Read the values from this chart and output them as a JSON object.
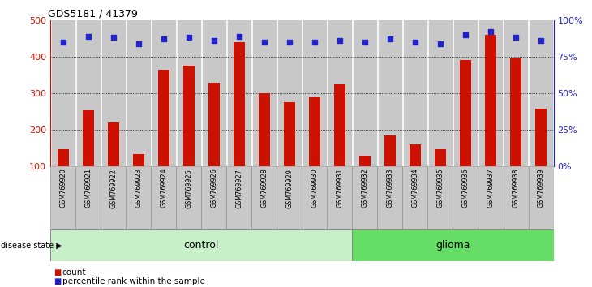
{
  "title": "GDS5181 / 41379",
  "samples": [
    "GSM769920",
    "GSM769921",
    "GSM769922",
    "GSM769923",
    "GSM769924",
    "GSM769925",
    "GSM769926",
    "GSM769927",
    "GSM769928",
    "GSM769929",
    "GSM769930",
    "GSM769931",
    "GSM769932",
    "GSM769933",
    "GSM769934",
    "GSM769935",
    "GSM769936",
    "GSM769937",
    "GSM769938",
    "GSM769939"
  ],
  "counts": [
    148,
    253,
    220,
    135,
    365,
    375,
    328,
    440,
    300,
    275,
    290,
    325,
    130,
    185,
    160,
    148,
    390,
    460,
    395,
    258
  ],
  "percentile_ranks": [
    85,
    89,
    88,
    84,
    87,
    88,
    86,
    89,
    85,
    85,
    85,
    86,
    85,
    87,
    85,
    84,
    90,
    92,
    88,
    86
  ],
  "bar_color": "#cc1100",
  "dot_color": "#2222cc",
  "control_count": 12,
  "glioma_count": 8,
  "control_label": "control",
  "glioma_label": "glioma",
  "disease_state_label": "disease state",
  "left_axis_color": "#cc1100",
  "right_axis_color": "#2222cc",
  "ylim_left": [
    100,
    500
  ],
  "ylim_right": [
    0,
    100
  ],
  "yticks_left": [
    100,
    200,
    300,
    400,
    500
  ],
  "ytick_labels_left": [
    "100",
    "200",
    "300",
    "400",
    "500"
  ],
  "yticks_right": [
    0,
    25,
    50,
    75,
    100
  ],
  "ytick_labels_right": [
    "0%",
    "25%",
    "50%",
    "75%",
    "100%"
  ],
  "grid_levels": [
    200,
    300,
    400
  ],
  "background_color": "#ffffff",
  "plot_bg_color": "#ffffff",
  "bar_bg_color": "#c8c8c8",
  "control_bg_color": "#c8f0c8",
  "glioma_bg_color": "#66dd66",
  "legend_count_label": "count",
  "legend_percentile_label": "percentile rank within the sample",
  "bar_width": 0.45
}
